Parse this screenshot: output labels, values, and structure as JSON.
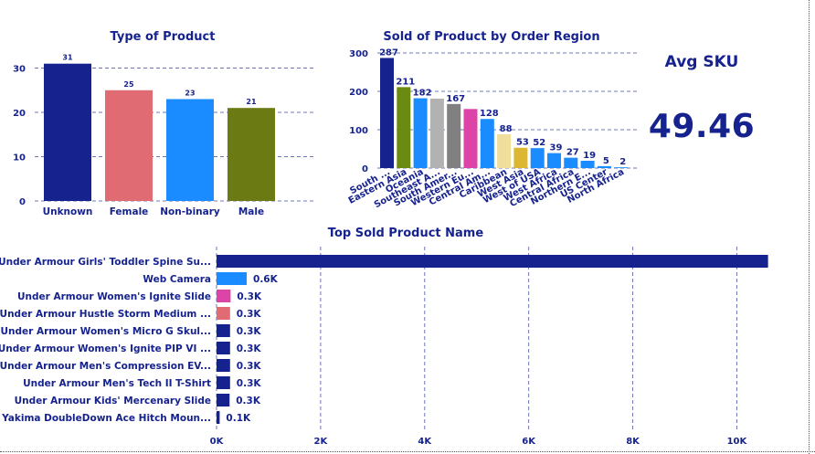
{
  "colors": {
    "navy": "#16238f",
    "pink": "#e06b73",
    "blue": "#1a8cff",
    "olive": "#6b7a12",
    "magenta": "#dd44a8",
    "green": "#6b8a12",
    "gray1": "#b2b2b2",
    "gray2": "#808080",
    "sand": "#efde9c",
    "gold": "#dcb832",
    "slate": "#394a7a"
  },
  "kpi": {
    "title": "Avg SKU",
    "value": "49.46"
  },
  "chart_data": [
    {
      "type": "bar",
      "title": "Type of Product",
      "categories": [
        "Unknown",
        "Female",
        "Non-binary",
        "Male"
      ],
      "values": [
        31,
        25,
        23,
        21
      ],
      "bar_colors": [
        "#16238f",
        "#e06b73",
        "#1a8cff",
        "#6b7a12"
      ],
      "ylim": [
        0,
        33
      ],
      "yticks": [
        0,
        10,
        20,
        30
      ],
      "ytick_labels": [
        "0",
        "10",
        "20",
        "30"
      ],
      "grid": true
    },
    {
      "type": "bar",
      "title": "Sold of Product by Order Region",
      "categories": [
        "South ...",
        "Eastern Asia",
        "Oceania",
        "Southeast A...",
        "South Amer...",
        "Western Eu...",
        "Central Am...",
        "Caribbean",
        "West Asia",
        "West of USA",
        "West Africa",
        "Central Africa",
        "Northern E...",
        "US Center",
        "North Africa"
      ],
      "values": [
        287,
        211,
        182,
        181,
        167,
        154,
        128,
        88,
        53,
        52,
        39,
        27,
        19,
        5,
        2
      ],
      "value_labels": [
        "287",
        "211",
        "182",
        "",
        "167",
        "",
        "128",
        "88",
        "53",
        "52",
        "39",
        "27",
        "19",
        "5",
        "2"
      ],
      "bar_colors": [
        "#16238f",
        "#6b8a12",
        "#1a8cff",
        "#b2b2b2",
        "#808080",
        "#dd44a8",
        "#1a8cff",
        "#efde9c",
        "#dcb832",
        "#1a8cff",
        "#1a8cff",
        "#1a8cff",
        "#1a8cff",
        "#1a8cff",
        "#1a8cff"
      ],
      "ylim": [
        0,
        300
      ],
      "yticks": [
        0,
        100,
        200,
        300
      ],
      "ytick_labels": [
        "0",
        "100",
        "200",
        "300"
      ],
      "grid": true
    },
    {
      "type": "bar",
      "orientation": "horizontal",
      "title": "Top Sold Product Name",
      "categories": [
        "Under Armour Girls' Toddler Spine Su...",
        "Web Camera",
        "Under Armour Women's Ignite Slide",
        "Under Armour Hustle Storm Medium ...",
        "Under Armour Women's Micro G Skul...",
        "Under Armour Women's Ignite PIP VI ...",
        "Under Armour Men's Compression EV...",
        "Under Armour Men's Tech II T-Shirt",
        "Under Armour Kids' Mercenary Slide",
        "Yakima DoubleDown Ace Hitch Moun..."
      ],
      "values": [
        10600,
        580,
        270,
        260,
        260,
        260,
        260,
        260,
        250,
        60
      ],
      "value_labels": [
        "",
        "0.6K",
        "0.3K",
        "0.3K",
        "0.3K",
        "0.3K",
        "0.3K",
        "0.3K",
        "0.3K",
        "0.1K"
      ],
      "bar_colors": [
        "#16238f",
        "#1a8cff",
        "#dd44a8",
        "#e06b73",
        "#16238f",
        "#16238f",
        "#16238f",
        "#16238f",
        "#16238f",
        "#16238f"
      ],
      "xlim": [
        0,
        10800
      ],
      "xticks": [
        0,
        2000,
        4000,
        6000,
        8000,
        10000
      ],
      "xtick_labels": [
        "0K",
        "2K",
        "4K",
        "6K",
        "8K",
        "10K"
      ],
      "grid": true
    }
  ]
}
